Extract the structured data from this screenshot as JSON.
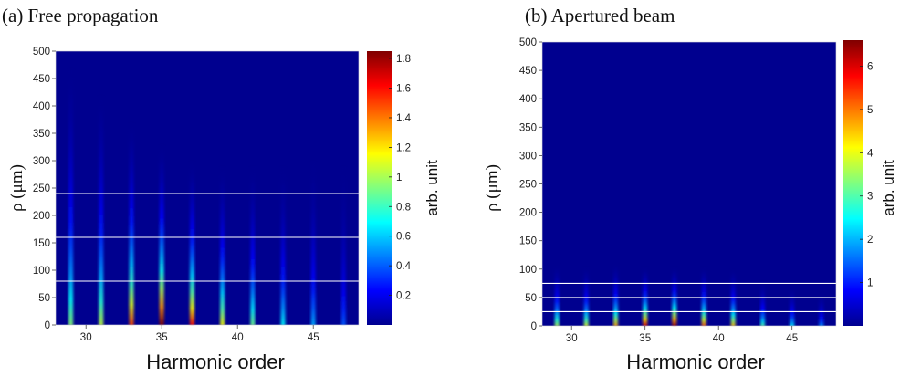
{
  "chart_data": [
    {
      "type": "heatmap",
      "panel_label": "(a) Free propagation",
      "xlabel": "Harmonic order",
      "ylabel": "ρ (μm)",
      "colorbar_label": "arb. unit",
      "xlim": [
        28,
        48
      ],
      "ylim": [
        0,
        500
      ],
      "x_ticks": [
        30,
        35,
        40,
        45
      ],
      "y_ticks": [
        0,
        50,
        100,
        150,
        200,
        250,
        300,
        350,
        400,
        450,
        500
      ],
      "colorbar_ticks": [
        0.2,
        0.4,
        0.6,
        0.8,
        1,
        1.2,
        1.4,
        1.6,
        1.8
      ],
      "colorbar_range": [
        0,
        1.85
      ],
      "colormap": "jet",
      "harmonics": [
        {
          "order": 29,
          "peak": 0.95,
          "extent_um": 470
        },
        {
          "order": 31,
          "peak": 1.05,
          "extent_um": 420
        },
        {
          "order": 33,
          "peak": 1.5,
          "extent_um": 370
        },
        {
          "order": 35,
          "peak": 1.85,
          "extent_um": 330
        },
        {
          "order": 37,
          "peak": 1.6,
          "extent_um": 300
        },
        {
          "order": 39,
          "peak": 1.15,
          "extent_um": 290
        },
        {
          "order": 41,
          "peak": 0.9,
          "extent_um": 290
        },
        {
          "order": 43,
          "peak": 0.7,
          "extent_um": 290
        },
        {
          "order": 45,
          "peak": 0.55,
          "extent_um": 300
        },
        {
          "order": 47,
          "peak": 0.4,
          "extent_um": 290
        }
      ],
      "reference_lines_um": [
        80,
        160,
        240
      ]
    },
    {
      "type": "heatmap",
      "panel_label": "(b) Apertured beam",
      "xlabel": "Harmonic order",
      "ylabel": "ρ (μm)",
      "colorbar_label": "arb. unit",
      "xlim": [
        28,
        48
      ],
      "ylim": [
        0,
        500
      ],
      "x_ticks": [
        30,
        35,
        40,
        45
      ],
      "y_ticks": [
        0,
        50,
        100,
        150,
        200,
        250,
        300,
        350,
        400,
        450,
        500
      ],
      "colorbar_ticks": [
        1,
        2,
        3,
        4,
        5,
        6
      ],
      "colorbar_range": [
        0,
        6.6
      ],
      "colormap": "jet",
      "harmonics": [
        {
          "order": 29,
          "peak": 3.6,
          "extent_um": 110
        },
        {
          "order": 31,
          "peak": 3.9,
          "extent_um": 105
        },
        {
          "order": 33,
          "peak": 4.7,
          "extent_um": 110
        },
        {
          "order": 35,
          "peak": 6.0,
          "extent_um": 105
        },
        {
          "order": 37,
          "peak": 6.4,
          "extent_um": 105
        },
        {
          "order": 39,
          "peak": 5.2,
          "extent_um": 105
        },
        {
          "order": 41,
          "peak": 4.5,
          "extent_um": 100
        },
        {
          "order": 43,
          "peak": 3.0,
          "extent_um": 80
        },
        {
          "order": 45,
          "peak": 2.4,
          "extent_um": 70
        },
        {
          "order": 47,
          "peak": 1.8,
          "extent_um": 60
        }
      ],
      "reference_lines_um": [
        25,
        50,
        75
      ]
    }
  ]
}
